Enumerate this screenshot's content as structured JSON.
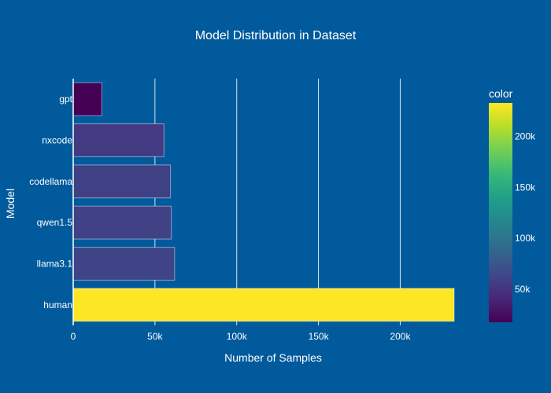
{
  "chart_data": {
    "type": "bar",
    "orientation": "horizontal",
    "title": "Model Distribution in Dataset",
    "xlabel": "Number of Samples",
    "ylabel": "Model",
    "categories": [
      "gpt",
      "nxcode",
      "codellama",
      "qwen1.5",
      "llama3.1",
      "human"
    ],
    "values": [
      17500,
      55500,
      59500,
      60000,
      62000,
      233000
    ],
    "xlim": [
      0,
      233000
    ],
    "xticks": [
      0,
      50000,
      100000,
      150000,
      200000
    ],
    "xtick_labels": [
      "0",
      "50k",
      "100k",
      "150k",
      "200k"
    ],
    "grid": true,
    "colorbar": {
      "title": "color",
      "colorscale": "Viridis",
      "range": [
        17500,
        233000
      ],
      "ticks": [
        50000,
        100000,
        150000,
        200000
      ],
      "tick_labels": [
        "50k",
        "100k",
        "150k",
        "200k"
      ]
    },
    "colors": {
      "background": "#005a9c",
      "text": "#ffffff"
    }
  }
}
